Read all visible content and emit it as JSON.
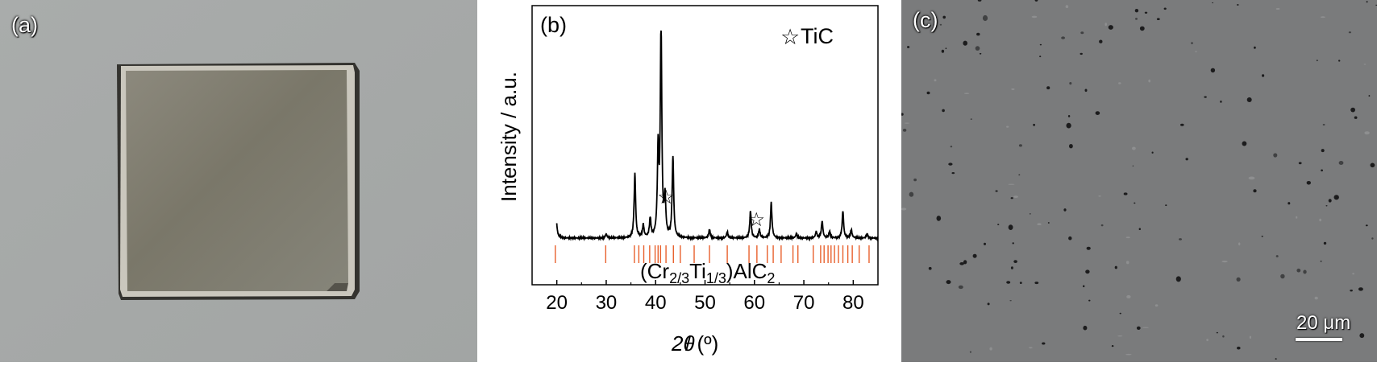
{
  "figure": {
    "panel_a_label": "(a)",
    "panel_b_label": "(b)",
    "panel_c_label": "(c)"
  },
  "panel_c": {
    "scale_bar_label": "20 μm"
  },
  "chart_data": {
    "type": "line",
    "ylabel": "Intensity / a.u.",
    "xlabel_symbol": "2θ",
    "xlabel_unit": "/ (º)",
    "xlim": [
      15,
      85
    ],
    "x_ticks": [
      20,
      30,
      40,
      50,
      60,
      70,
      80
    ],
    "legend": {
      "marker": "☆",
      "label": "TiC",
      "position": "top-right"
    },
    "phase_label": {
      "base": "(Cr",
      "sub1": "2/3",
      "mid": "Ti",
      "sub2": "1/3",
      "end": ")AlC",
      "sub3": "2"
    },
    "series": [
      {
        "peaks": [
          {
            "x": 19.8,
            "y": 16
          },
          {
            "x": 30.0,
            "y": 2
          },
          {
            "x": 35.8,
            "y": 31
          },
          {
            "x": 37.5,
            "y": 6
          },
          {
            "x": 38.9,
            "y": 9
          },
          {
            "x": 40.5,
            "y": 41
          },
          {
            "x": 41.1,
            "y": 100
          },
          {
            "x": 41.9,
            "y": 18
          },
          {
            "x": 43.5,
            "y": 39
          },
          {
            "x": 50.9,
            "y": 4
          },
          {
            "x": 54.5,
            "y": 3
          },
          {
            "x": 59.2,
            "y": 13
          },
          {
            "x": 61.0,
            "y": 4
          },
          {
            "x": 63.4,
            "y": 17
          },
          {
            "x": 68.5,
            "y": 2
          },
          {
            "x": 72.5,
            "y": 3
          },
          {
            "x": 73.7,
            "y": 8
          },
          {
            "x": 75.2,
            "y": 3
          },
          {
            "x": 77.9,
            "y": 13
          },
          {
            "x": 79.6,
            "y": 4
          },
          {
            "x": 82.8,
            "y": 2
          }
        ]
      }
    ],
    "tic_markers_x": [
      42.1,
      60.4
    ],
    "reference_lines_x": [
      19.7,
      29.9,
      35.7,
      36.6,
      37.6,
      38.8,
      39.9,
      40.5,
      41.0,
      42.1,
      43.6,
      45.0,
      47.8,
      50.9,
      54.5,
      58.9,
      60.5,
      62.6,
      63.8,
      65.4,
      67.8,
      68.8,
      71.9,
      73.4,
      74.1,
      74.9,
      75.5,
      76.2,
      77.0,
      77.9,
      78.9,
      79.8,
      81.2,
      83.2
    ],
    "colors": {
      "reference_lines": "#e8602c",
      "line": "#000000"
    }
  }
}
